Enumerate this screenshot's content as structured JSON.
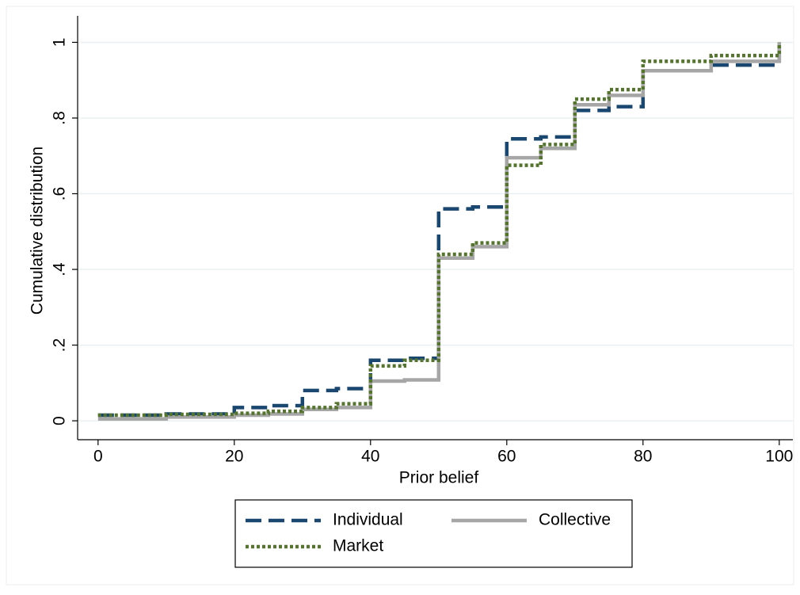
{
  "chart_data": {
    "type": "line",
    "step": true,
    "x_label": "Prior belief",
    "y_label": "Cumulative distribution",
    "x": [
      0,
      10,
      20,
      25,
      30,
      35,
      40,
      45,
      50,
      55,
      60,
      65,
      70,
      75,
      80,
      90,
      100
    ],
    "series": [
      {
        "name": "Individual",
        "color": "#1a476f",
        "dash": "dash",
        "values": [
          0.015,
          0.018,
          0.035,
          0.04,
          0.08,
          0.085,
          0.16,
          0.165,
          0.56,
          0.565,
          0.745,
          0.75,
          0.82,
          0.83,
          0.925,
          0.94,
          1
        ]
      },
      {
        "name": "Collective",
        "color": "#a6a6a6",
        "dash": "solid",
        "values": [
          0.005,
          0.01,
          0.015,
          0.018,
          0.03,
          0.035,
          0.105,
          0.108,
          0.43,
          0.46,
          0.695,
          0.72,
          0.835,
          0.86,
          0.925,
          0.95,
          1
        ]
      },
      {
        "name": "Market",
        "color": "#55752f",
        "dash": "dot",
        "values": [
          0.015,
          0.017,
          0.02,
          0.025,
          0.035,
          0.045,
          0.145,
          0.16,
          0.44,
          0.47,
          0.675,
          0.73,
          0.85,
          0.875,
          0.95,
          0.965,
          1
        ]
      }
    ],
    "xlim": [
      -3,
      102
    ],
    "ylim": [
      -0.05,
      1.07
    ],
    "xticks": [
      0,
      20,
      40,
      60,
      80,
      100
    ],
    "yticks": [
      0,
      {
        "value": 0.2,
        "label": ".2"
      },
      {
        "value": 0.4,
        "label": ".4"
      },
      {
        "value": 0.6,
        "label": ".6"
      },
      {
        "value": 0.8,
        "label": ".8"
      },
      1
    ],
    "grid": true,
    "legend": "bottom"
  }
}
